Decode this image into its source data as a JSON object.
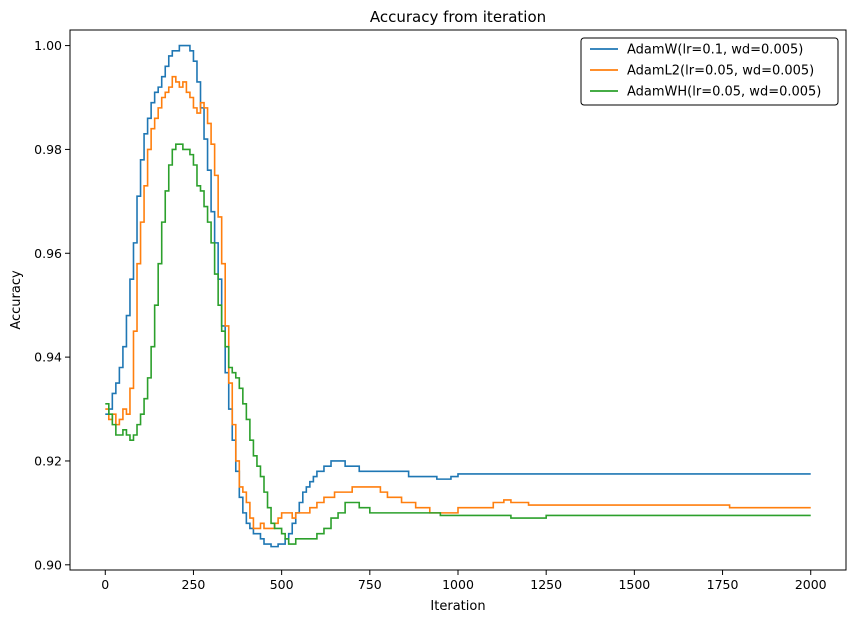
{
  "chart_data": {
    "type": "line",
    "title": "Accuracy from iteration",
    "xlabel": "Iteration",
    "ylabel": "Accuracy",
    "xlim": [
      -100,
      2100
    ],
    "ylim": [
      0.899,
      1.003
    ],
    "xticks": [
      0,
      250,
      500,
      750,
      1000,
      1250,
      1500,
      1750,
      2000
    ],
    "xtick_labels": [
      "0",
      "250",
      "500",
      "750",
      "1000",
      "1250",
      "1500",
      "1750",
      "2000"
    ],
    "yticks": [
      0.9,
      0.92,
      0.94,
      0.96,
      0.98,
      1.0
    ],
    "ytick_labels": [
      "0.90",
      "0.92",
      "0.94",
      "0.96",
      "0.98",
      "1.00"
    ],
    "grid": false,
    "legend_position": "top-right",
    "series": [
      {
        "name": "AdamW(lr=0.1, wd=0.005)",
        "color": "#1f77b4",
        "x": [
          0,
          10,
          20,
          30,
          40,
          50,
          60,
          70,
          80,
          90,
          100,
          110,
          120,
          130,
          140,
          150,
          160,
          170,
          180,
          190,
          200,
          210,
          220,
          230,
          240,
          250,
          260,
          270,
          280,
          290,
          300,
          310,
          320,
          330,
          340,
          350,
          360,
          370,
          380,
          390,
          400,
          410,
          420,
          430,
          440,
          450,
          460,
          470,
          480,
          490,
          500,
          510,
          520,
          530,
          540,
          550,
          560,
          570,
          580,
          590,
          600,
          620,
          640,
          660,
          680,
          700,
          720,
          750,
          780,
          800,
          830,
          860,
          900,
          940,
          980,
          1000,
          1050,
          1100,
          1200,
          1400,
          1600,
          1800,
          2000
        ],
        "y": [
          0.929,
          0.93,
          0.933,
          0.935,
          0.938,
          0.942,
          0.948,
          0.955,
          0.962,
          0.971,
          0.978,
          0.983,
          0.986,
          0.989,
          0.991,
          0.992,
          0.994,
          0.996,
          0.998,
          0.999,
          0.999,
          1.0,
          1.0,
          1.0,
          0.999,
          0.997,
          0.993,
          0.988,
          0.982,
          0.976,
          0.968,
          0.962,
          0.955,
          0.946,
          0.937,
          0.93,
          0.924,
          0.918,
          0.913,
          0.91,
          0.908,
          0.907,
          0.906,
          0.906,
          0.905,
          0.904,
          0.904,
          0.9035,
          0.9035,
          0.904,
          0.904,
          0.905,
          0.906,
          0.908,
          0.91,
          0.912,
          0.914,
          0.915,
          0.916,
          0.917,
          0.918,
          0.919,
          0.92,
          0.92,
          0.919,
          0.919,
          0.918,
          0.918,
          0.918,
          0.918,
          0.918,
          0.917,
          0.917,
          0.9165,
          0.917,
          0.9175,
          0.9175,
          0.9175,
          0.9175,
          0.9175,
          0.9175,
          0.9175,
          0.9175
        ]
      },
      {
        "name": "AdamL2(lr=0.05, wd=0.005)",
        "color": "#ff7f0e",
        "x": [
          0,
          10,
          20,
          30,
          40,
          50,
          60,
          70,
          80,
          90,
          100,
          110,
          120,
          130,
          140,
          150,
          160,
          170,
          180,
          190,
          200,
          210,
          220,
          230,
          240,
          250,
          260,
          270,
          280,
          290,
          300,
          310,
          320,
          330,
          340,
          350,
          360,
          370,
          380,
          390,
          400,
          410,
          420,
          430,
          440,
          450,
          460,
          470,
          480,
          490,
          500,
          510,
          520,
          530,
          540,
          550,
          560,
          580,
          600,
          620,
          650,
          680,
          700,
          720,
          750,
          780,
          800,
          840,
          880,
          920,
          960,
          1000,
          1050,
          1100,
          1130,
          1150,
          1200,
          1300,
          1500,
          1700,
          1770,
          1800,
          2000
        ],
        "y": [
          0.93,
          0.928,
          0.929,
          0.927,
          0.928,
          0.93,
          0.929,
          0.934,
          0.945,
          0.958,
          0.966,
          0.973,
          0.98,
          0.984,
          0.986,
          0.988,
          0.99,
          0.991,
          0.992,
          0.994,
          0.993,
          0.992,
          0.993,
          0.991,
          0.99,
          0.988,
          0.987,
          0.989,
          0.988,
          0.985,
          0.981,
          0.975,
          0.967,
          0.958,
          0.946,
          0.935,
          0.927,
          0.92,
          0.915,
          0.914,
          0.912,
          0.909,
          0.907,
          0.907,
          0.908,
          0.907,
          0.907,
          0.907,
          0.908,
          0.909,
          0.91,
          0.91,
          0.91,
          0.909,
          0.91,
          0.91,
          0.91,
          0.911,
          0.912,
          0.913,
          0.914,
          0.914,
          0.915,
          0.915,
          0.915,
          0.914,
          0.913,
          0.912,
          0.911,
          0.91,
          0.91,
          0.911,
          0.911,
          0.912,
          0.9125,
          0.912,
          0.9115,
          0.9115,
          0.9115,
          0.9115,
          0.911,
          0.911,
          0.911
        ]
      },
      {
        "name": "AdamWH(lr=0.05, wd=0.005)",
        "color": "#2ca02c",
        "x": [
          0,
          10,
          20,
          30,
          40,
          50,
          60,
          70,
          80,
          90,
          100,
          110,
          120,
          130,
          140,
          150,
          160,
          170,
          180,
          190,
          200,
          210,
          220,
          230,
          240,
          250,
          260,
          270,
          280,
          290,
          300,
          310,
          320,
          330,
          340,
          350,
          360,
          370,
          380,
          390,
          400,
          410,
          420,
          430,
          440,
          450,
          460,
          470,
          480,
          490,
          500,
          510,
          520,
          530,
          540,
          550,
          560,
          580,
          600,
          620,
          640,
          660,
          680,
          700,
          720,
          750,
          780,
          800,
          850,
          900,
          950,
          1000,
          1100,
          1150,
          1200,
          1250,
          1300,
          1500,
          1800,
          2000
        ],
        "y": [
          0.931,
          0.929,
          0.927,
          0.925,
          0.925,
          0.926,
          0.925,
          0.924,
          0.925,
          0.927,
          0.929,
          0.932,
          0.936,
          0.942,
          0.95,
          0.958,
          0.966,
          0.972,
          0.977,
          0.98,
          0.981,
          0.981,
          0.98,
          0.98,
          0.979,
          0.977,
          0.973,
          0.972,
          0.969,
          0.966,
          0.962,
          0.956,
          0.95,
          0.945,
          0.942,
          0.938,
          0.937,
          0.936,
          0.934,
          0.931,
          0.928,
          0.924,
          0.921,
          0.919,
          0.917,
          0.914,
          0.911,
          0.908,
          0.907,
          0.907,
          0.906,
          0.905,
          0.904,
          0.904,
          0.905,
          0.905,
          0.905,
          0.905,
          0.906,
          0.907,
          0.909,
          0.91,
          0.912,
          0.912,
          0.911,
          0.91,
          0.91,
          0.91,
          0.91,
          0.91,
          0.9095,
          0.9095,
          0.9095,
          0.909,
          0.909,
          0.9095,
          0.9095,
          0.9095,
          0.9095,
          0.9095
        ]
      }
    ]
  }
}
